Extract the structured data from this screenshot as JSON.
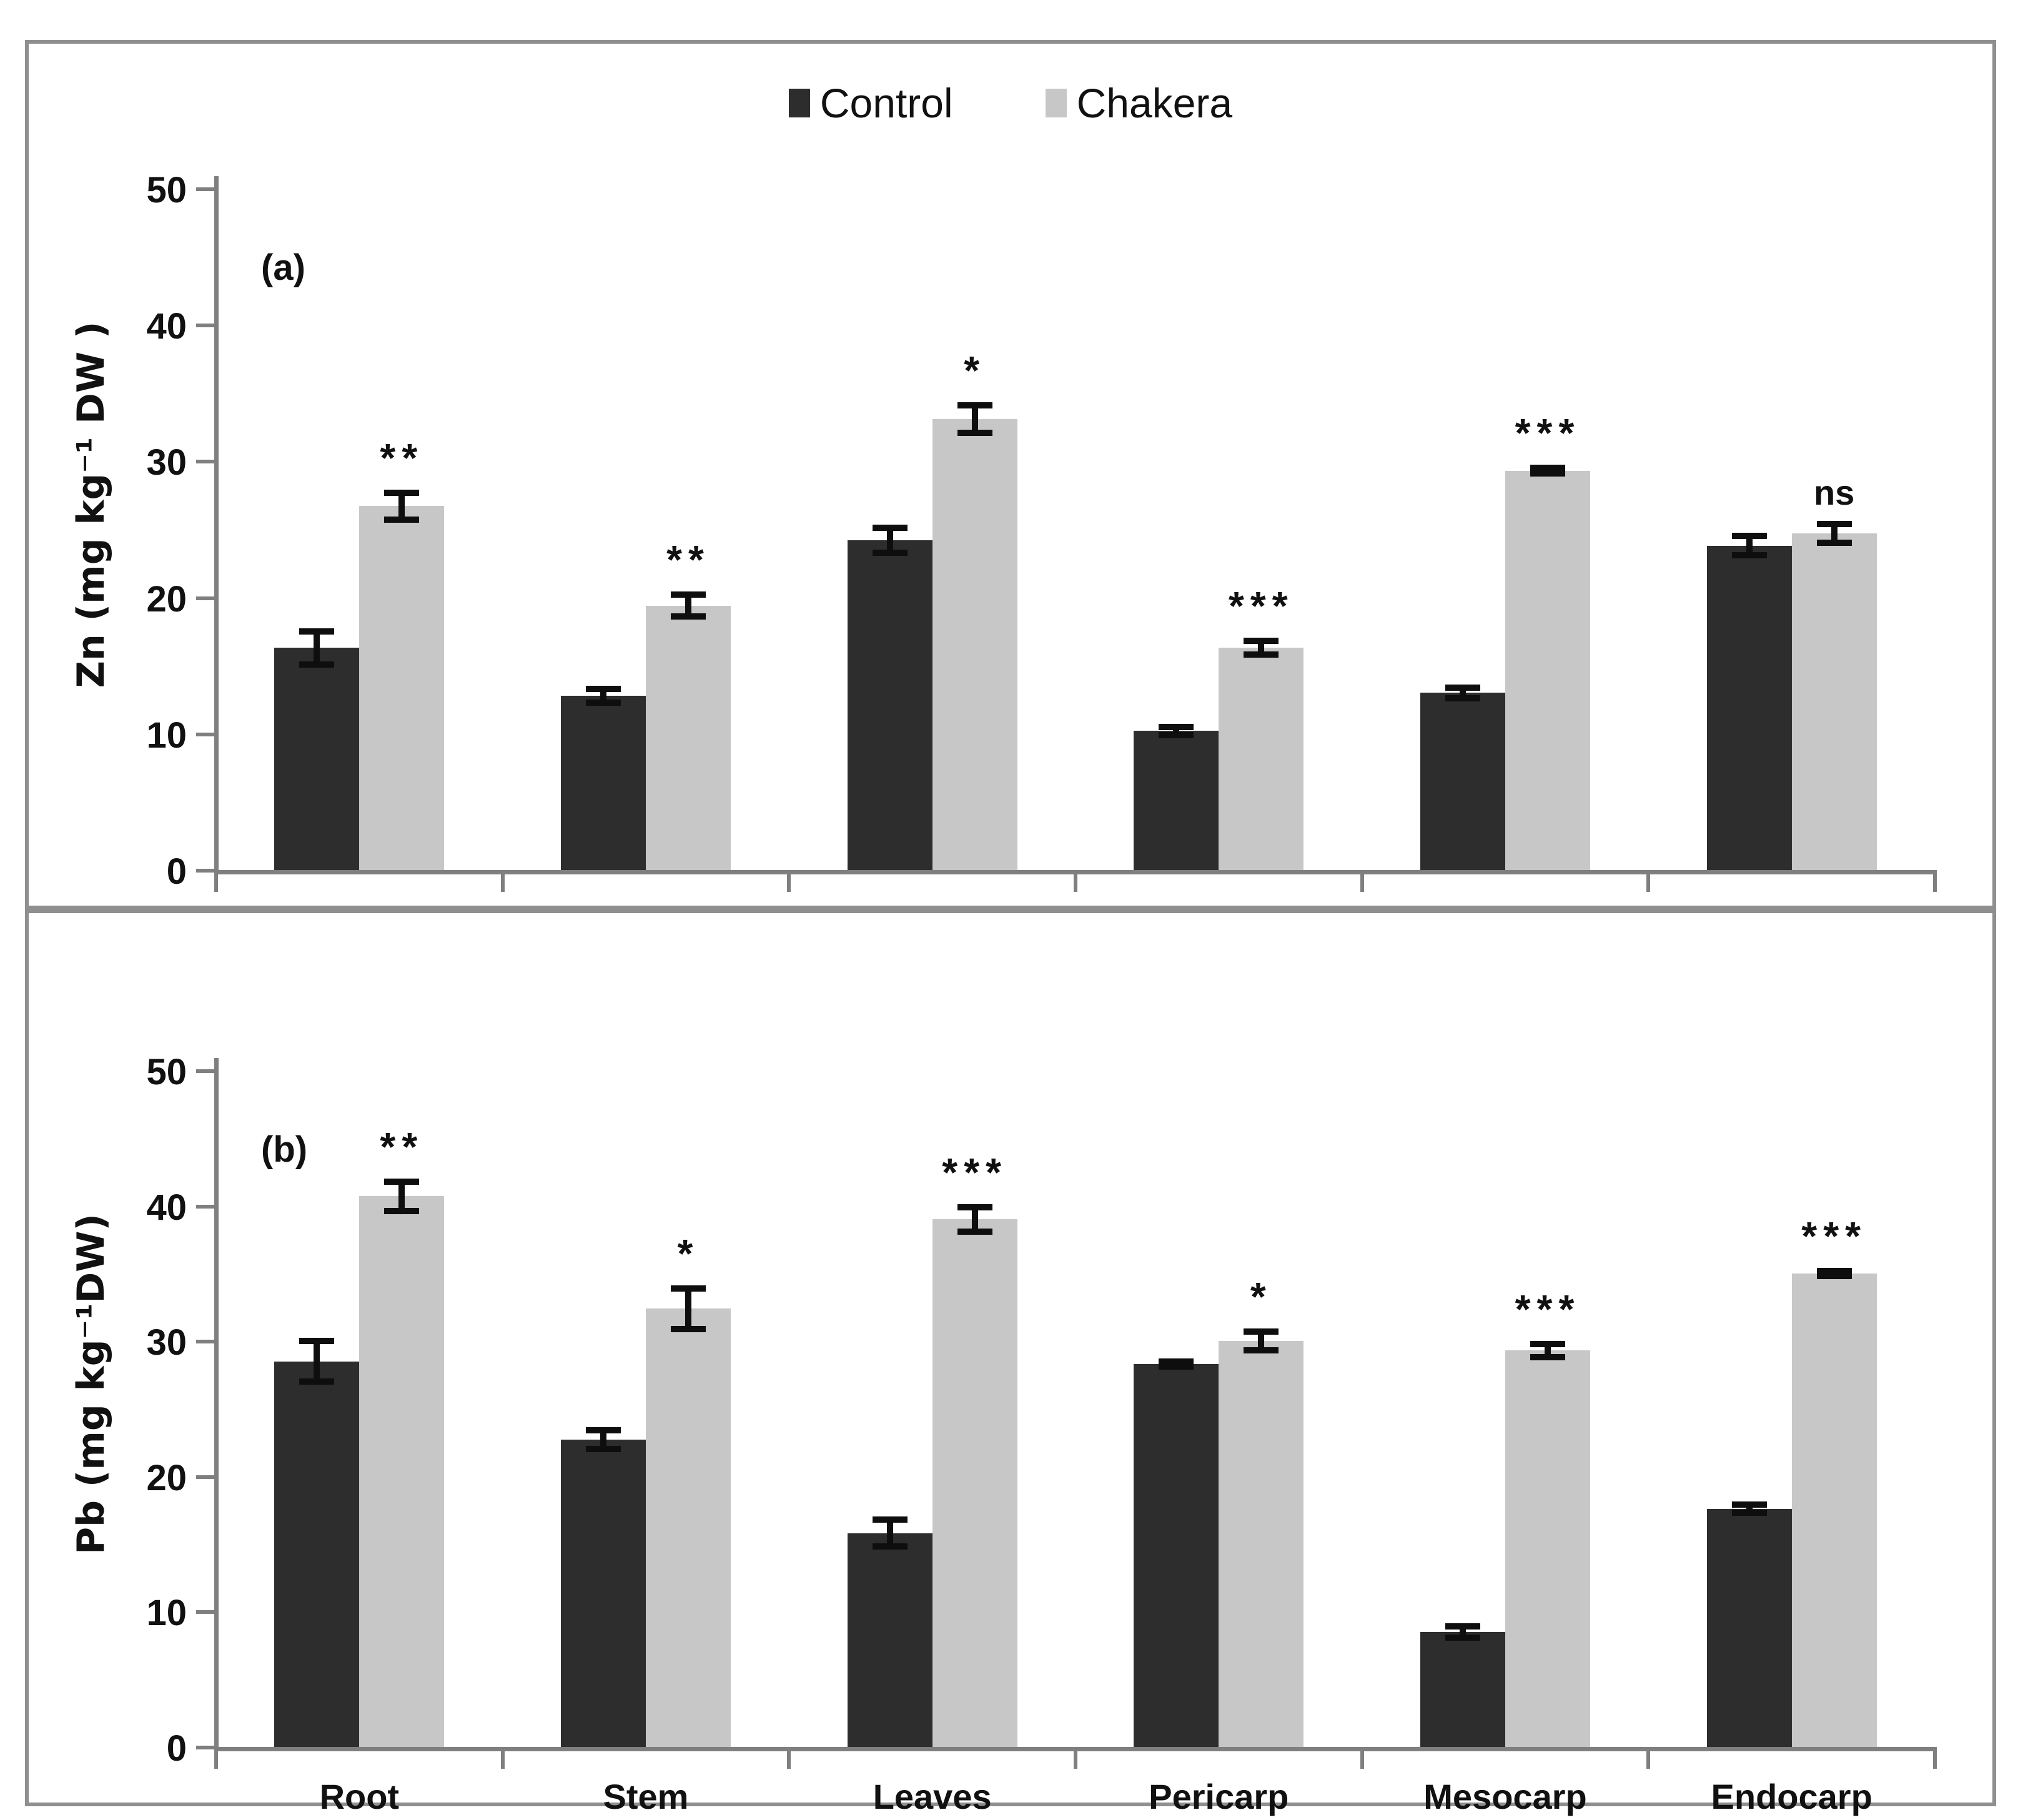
{
  "meta": {
    "colors": {
      "control_bar": "#2d2d2d",
      "chakera_bar": "#c7c7c7",
      "axis": "#7f7f7f",
      "error_bar": "#0e0e0e",
      "panel_border": "#8f8f8f",
      "background": "#ffffff",
      "text": "#111111"
    }
  },
  "legend": {
    "items": [
      {
        "label": "Control",
        "color": "#2d2d2d"
      },
      {
        "label": "Chakera",
        "color": "#c7c7c7"
      }
    ],
    "position": "top-center"
  },
  "chart_data": [
    {
      "type": "bar",
      "panel_label": "(a)",
      "title": "",
      "xlabel": "",
      "ylabel": "Zn (mg kg⁻¹ DW )",
      "ylim": [
        0,
        50
      ],
      "yticks": [
        0,
        10,
        20,
        30,
        40,
        50
      ],
      "grid": false,
      "categories": [
        "Root",
        "Stem",
        "Leaves",
        "Pericarp",
        "Mesocarp",
        "Endocarp"
      ],
      "series": [
        {
          "name": "Control",
          "color": "#2d2d2d",
          "values": [
            16.3,
            12.8,
            24.2,
            10.2,
            13.0,
            23.8
          ],
          "errors": [
            1.2,
            0.5,
            0.9,
            0.3,
            0.4,
            0.7
          ]
        },
        {
          "name": "Chakera",
          "color": "#c7c7c7",
          "values": [
            26.7,
            19.4,
            33.1,
            16.3,
            29.3,
            24.7
          ],
          "errors": [
            1.0,
            0.8,
            1.0,
            0.5,
            0.2,
            0.7
          ]
        }
      ],
      "significance": [
        "**",
        "**",
        "*",
        "***",
        "***",
        "ns"
      ],
      "significance_on_series": "Chakera",
      "show_x_labels": false
    },
    {
      "type": "bar",
      "panel_label": "(b)",
      "title": "",
      "xlabel": "",
      "ylabel": "Pb (mg kg⁻¹DW)",
      "ylim": [
        0,
        50
      ],
      "yticks": [
        0,
        10,
        20,
        30,
        40,
        50
      ],
      "grid": false,
      "categories": [
        "Root",
        "Stem",
        "Leaves",
        "Pericarp",
        "Mesocarp",
        "Endocarp"
      ],
      "series": [
        {
          "name": "Control",
          "color": "#2d2d2d",
          "values": [
            28.5,
            22.7,
            15.8,
            28.3,
            8.5,
            17.6
          ],
          "errors": [
            1.5,
            0.7,
            1.0,
            0.2,
            0.4,
            0.3
          ]
        },
        {
          "name": "Chakera",
          "color": "#c7c7c7",
          "values": [
            40.7,
            32.4,
            39.0,
            30.0,
            29.3,
            35.0
          ],
          "errors": [
            1.1,
            1.5,
            0.9,
            0.7,
            0.5,
            0.2
          ]
        }
      ],
      "significance": [
        "**",
        "*",
        "***",
        "*",
        "***",
        "***"
      ],
      "significance_on_series": "Chakera",
      "show_x_labels": true
    }
  ]
}
